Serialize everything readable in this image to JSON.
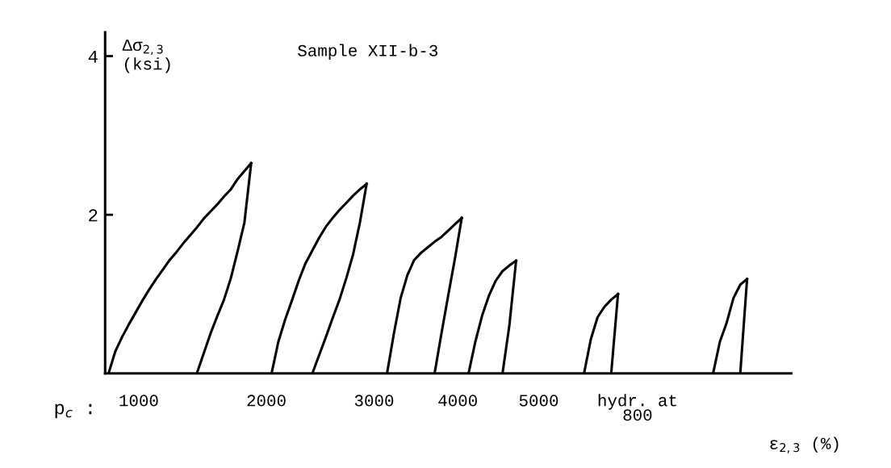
{
  "chart_data": {
    "type": "line",
    "title": "Sample XII-b-3",
    "ylabel": "Δσ$_{2,3}$\n(ksi)",
    "xlabel": "ε$_{2,3}$ (%)",
    "annotations": [
      "p$_{c}$ :",
      "1000",
      "2000",
      "3000",
      "4000",
      "5000",
      "hydr. at\n800"
    ],
    "ylim": [
      0,
      4.3
    ],
    "yticks": [
      2,
      4
    ],
    "tick_labels": "y",
    "grid": false,
    "legend": false,
    "marker": "none",
    "line_style": "solid",
    "categories": [
      null,
      null,
      null,
      null,
      null,
      null,
      null,
      null,
      null,
      null,
      null,
      null,
      null,
      null,
      null,
      null,
      null,
      null,
      null,
      null,
      null,
      null,
      null,
      null,
      null,
      null,
      null,
      null,
      null,
      null,
      null,
      null,
      null,
      null,
      null,
      null,
      null,
      null,
      null,
      null,
      null,
      null,
      null,
      null,
      null,
      null,
      null,
      null,
      null,
      null,
      null,
      null,
      null,
      null,
      null,
      null,
      null,
      null,
      null,
      null,
      null,
      null,
      null,
      null,
      null,
      null,
      null,
      null,
      null,
      null,
      null,
      null,
      null,
      null,
      null,
      null,
      null,
      null,
      null,
      null,
      null,
      null,
      null,
      null,
      null,
      null,
      null,
      null,
      null,
      null,
      null,
      null,
      null,
      null,
      null,
      null,
      null,
      null,
      null,
      null,
      null
    ],
    "series": [
      {
        "color": "#000000",
        "values": [
          0,
          0.28,
          0.46,
          0.62,
          0.77,
          0.92,
          1.06,
          1.19,
          1.31,
          1.43,
          1.53,
          1.64,
          1.74,
          1.84,
          1.95,
          2.04,
          2.13,
          2.23,
          2.32,
          2.45,
          2.55,
          2.65,
          null,
          null,
          null,
          null,
          null,
          null,
          null,
          null,
          null,
          null,
          null,
          null,
          null,
          null,
          null,
          null,
          null,
          null,
          null,
          null,
          null,
          null,
          null,
          null,
          null,
          null,
          null,
          null,
          null,
          null,
          null,
          null,
          null,
          null,
          null,
          null,
          null,
          null,
          null,
          null,
          null,
          null,
          null,
          null,
          null,
          null,
          null,
          null,
          null,
          null,
          null,
          null,
          null,
          null,
          null,
          null,
          null,
          null,
          null,
          null,
          null,
          null,
          null,
          null,
          null,
          null,
          null,
          null,
          null,
          null,
          null,
          null,
          null,
          null,
          null,
          null,
          null,
          null,
          null
        ]
      },
      {
        "color": "#000000",
        "values": [
          null,
          null,
          null,
          null,
          null,
          null,
          null,
          null,
          null,
          null,
          null,
          null,
          null,
          0,
          0.25,
          0.5,
          0.72,
          0.93,
          1.2,
          1.54,
          1.9,
          2.65,
          null,
          null,
          null,
          null,
          null,
          null,
          null,
          null,
          null,
          null,
          null,
          null,
          null,
          null,
          null,
          null,
          null,
          null,
          null,
          null,
          null,
          null,
          null,
          null,
          null,
          null,
          null,
          null,
          null,
          null,
          null,
          null,
          null,
          null,
          null,
          null,
          null,
          null,
          null,
          null,
          null,
          null,
          null,
          null,
          null,
          null,
          null,
          null,
          null,
          null,
          null,
          null,
          null,
          null,
          null,
          null,
          null,
          null,
          null,
          null,
          null,
          null,
          null,
          null,
          null,
          null,
          null,
          null,
          null,
          null,
          null,
          null,
          null,
          null,
          null,
          null,
          null,
          null,
          null
        ]
      },
      {
        "color": "#000000",
        "values": [
          null,
          null,
          null,
          null,
          null,
          null,
          null,
          null,
          null,
          null,
          null,
          null,
          null,
          null,
          null,
          null,
          null,
          null,
          null,
          null,
          null,
          null,
          null,
          null,
          0,
          0.4,
          0.68,
          0.92,
          1.17,
          1.39,
          1.55,
          1.71,
          1.85,
          1.96,
          2.06,
          2.15,
          2.24,
          2.32,
          2.39,
          null,
          null,
          null,
          null,
          null,
          null,
          null,
          null,
          null,
          null,
          null,
          null,
          null,
          null,
          null,
          null,
          null,
          null,
          null,
          null,
          null,
          null,
          null,
          null,
          null,
          null,
          null,
          null,
          null,
          null,
          null,
          null,
          null,
          null,
          null,
          null,
          null,
          null,
          null,
          null,
          null,
          null,
          null,
          null,
          null,
          null,
          null,
          null,
          null,
          null,
          null,
          null,
          null,
          null,
          null,
          null,
          null,
          null,
          null,
          null,
          null,
          null
        ]
      },
      {
        "color": "#000000",
        "values": [
          null,
          null,
          null,
          null,
          null,
          null,
          null,
          null,
          null,
          null,
          null,
          null,
          null,
          null,
          null,
          null,
          null,
          null,
          null,
          null,
          null,
          null,
          null,
          null,
          null,
          null,
          null,
          null,
          null,
          null,
          0,
          0.23,
          0.46,
          0.7,
          0.93,
          1.2,
          1.5,
          1.9,
          2.39,
          null,
          null,
          null,
          null,
          null,
          null,
          null,
          null,
          null,
          null,
          null,
          null,
          null,
          null,
          null,
          null,
          null,
          null,
          null,
          null,
          null,
          null,
          null,
          null,
          null,
          null,
          null,
          null,
          null,
          null,
          null,
          null,
          null,
          null,
          null,
          null,
          null,
          null,
          null,
          null,
          null,
          null,
          null,
          null,
          null,
          null,
          null,
          null,
          null,
          null,
          null,
          null,
          null,
          null,
          null,
          null,
          null,
          null,
          null,
          null,
          null,
          null
        ]
      },
      {
        "color": "#000000",
        "values": [
          null,
          null,
          null,
          null,
          null,
          null,
          null,
          null,
          null,
          null,
          null,
          null,
          null,
          null,
          null,
          null,
          null,
          null,
          null,
          null,
          null,
          null,
          null,
          null,
          null,
          null,
          null,
          null,
          null,
          null,
          null,
          null,
          null,
          null,
          null,
          null,
          null,
          null,
          null,
          null,
          null,
          0,
          0.5,
          0.95,
          1.24,
          1.43,
          1.52,
          1.59,
          1.66,
          1.72,
          1.8,
          1.88,
          1.96,
          null,
          null,
          null,
          null,
          null,
          null,
          null,
          null,
          null,
          null,
          null,
          null,
          null,
          null,
          null,
          null,
          null,
          null,
          null,
          null,
          null,
          null,
          null,
          null,
          null,
          null,
          null,
          null,
          null,
          null,
          null,
          null,
          null,
          null,
          null,
          null,
          null,
          null,
          null,
          null,
          null,
          null,
          null,
          null,
          null,
          null,
          null,
          null
        ]
      },
      {
        "color": "#000000",
        "values": [
          null,
          null,
          null,
          null,
          null,
          null,
          null,
          null,
          null,
          null,
          null,
          null,
          null,
          null,
          null,
          null,
          null,
          null,
          null,
          null,
          null,
          null,
          null,
          null,
          null,
          null,
          null,
          null,
          null,
          null,
          null,
          null,
          null,
          null,
          null,
          null,
          null,
          null,
          null,
          null,
          null,
          null,
          null,
          null,
          null,
          null,
          null,
          null,
          0,
          0.5,
          0.98,
          1.45,
          1.96,
          null,
          null,
          null,
          null,
          null,
          null,
          null,
          null,
          null,
          null,
          null,
          null,
          null,
          null,
          null,
          null,
          null,
          null,
          null,
          null,
          null,
          null,
          null,
          null,
          null,
          null,
          null,
          null,
          null,
          null,
          null,
          null,
          null,
          null,
          null,
          null,
          null,
          null,
          null,
          null,
          null,
          null,
          null,
          null,
          null,
          null,
          null,
          null
        ]
      },
      {
        "color": "#000000",
        "values": [
          null,
          null,
          null,
          null,
          null,
          null,
          null,
          null,
          null,
          null,
          null,
          null,
          null,
          null,
          null,
          null,
          null,
          null,
          null,
          null,
          null,
          null,
          null,
          null,
          null,
          null,
          null,
          null,
          null,
          null,
          null,
          null,
          null,
          null,
          null,
          null,
          null,
          null,
          null,
          null,
          null,
          null,
          null,
          null,
          null,
          null,
          null,
          null,
          null,
          null,
          null,
          null,
          null,
          0,
          0.4,
          0.73,
          0.98,
          1.17,
          1.29,
          1.36,
          1.42,
          null,
          null,
          null,
          null,
          null,
          null,
          null,
          null,
          null,
          null,
          null,
          null,
          null,
          null,
          null,
          null,
          null,
          null,
          null,
          null,
          null,
          null,
          null,
          null,
          null,
          null,
          null,
          null,
          null,
          null,
          null,
          null,
          null,
          null,
          null,
          null,
          null,
          null,
          null,
          null
        ]
      },
      {
        "color": "#000000",
        "values": [
          null,
          null,
          null,
          null,
          null,
          null,
          null,
          null,
          null,
          null,
          null,
          null,
          null,
          null,
          null,
          null,
          null,
          null,
          null,
          null,
          null,
          null,
          null,
          null,
          null,
          null,
          null,
          null,
          null,
          null,
          null,
          null,
          null,
          null,
          null,
          null,
          null,
          null,
          null,
          null,
          null,
          null,
          null,
          null,
          null,
          null,
          null,
          null,
          null,
          null,
          null,
          null,
          null,
          null,
          null,
          null,
          null,
          null,
          0,
          0.6,
          1.42,
          null,
          null,
          null,
          null,
          null,
          null,
          null,
          null,
          null,
          null,
          null,
          null,
          null,
          null,
          null,
          null,
          null,
          null,
          null,
          null,
          null,
          null,
          null,
          null,
          null,
          null,
          null,
          null,
          null,
          null,
          null,
          null,
          null,
          null,
          null,
          null,
          null,
          null,
          null,
          null
        ]
      },
      {
        "color": "#000000",
        "values": [
          null,
          null,
          null,
          null,
          null,
          null,
          null,
          null,
          null,
          null,
          null,
          null,
          null,
          null,
          null,
          null,
          null,
          null,
          null,
          null,
          null,
          null,
          null,
          null,
          null,
          null,
          null,
          null,
          null,
          null,
          null,
          null,
          null,
          null,
          null,
          null,
          null,
          null,
          null,
          null,
          null,
          null,
          null,
          null,
          null,
          null,
          null,
          null,
          null,
          null,
          null,
          null,
          null,
          null,
          null,
          null,
          null,
          null,
          null,
          null,
          null,
          null,
          null,
          null,
          null,
          null,
          null,
          null,
          null,
          null,
          0,
          0.43,
          0.71,
          0.84,
          0.93,
          1.0,
          null,
          null,
          null,
          null,
          null,
          null,
          null,
          null,
          null,
          null,
          null,
          null,
          null,
          null,
          null,
          null,
          null,
          null,
          null,
          null,
          null,
          null,
          null,
          null,
          null
        ]
      },
      {
        "color": "#000000",
        "values": [
          null,
          null,
          null,
          null,
          null,
          null,
          null,
          null,
          null,
          null,
          null,
          null,
          null,
          null,
          null,
          null,
          null,
          null,
          null,
          null,
          null,
          null,
          null,
          null,
          null,
          null,
          null,
          null,
          null,
          null,
          null,
          null,
          null,
          null,
          null,
          null,
          null,
          null,
          null,
          null,
          null,
          null,
          null,
          null,
          null,
          null,
          null,
          null,
          null,
          null,
          null,
          null,
          null,
          null,
          null,
          null,
          null,
          null,
          null,
          null,
          null,
          null,
          null,
          null,
          null,
          null,
          null,
          null,
          null,
          null,
          null,
          null,
          null,
          null,
          0,
          1.0,
          null,
          null,
          null,
          null,
          null,
          null,
          null,
          null,
          null,
          null,
          null,
          null,
          null,
          null,
          null,
          null,
          null,
          null,
          null,
          null,
          null,
          null,
          null,
          null,
          null
        ]
      },
      {
        "color": "#000000",
        "values": [
          null,
          null,
          null,
          null,
          null,
          null,
          null,
          null,
          null,
          null,
          null,
          null,
          null,
          null,
          null,
          null,
          null,
          null,
          null,
          null,
          null,
          null,
          null,
          null,
          null,
          null,
          null,
          null,
          null,
          null,
          null,
          null,
          null,
          null,
          null,
          null,
          null,
          null,
          null,
          null,
          null,
          null,
          null,
          null,
          null,
          null,
          null,
          null,
          null,
          null,
          null,
          null,
          null,
          null,
          null,
          null,
          null,
          null,
          null,
          null,
          null,
          null,
          null,
          null,
          null,
          null,
          null,
          null,
          null,
          null,
          null,
          null,
          null,
          null,
          null,
          null,
          null,
          null,
          null,
          null,
          null,
          null,
          null,
          null,
          null,
          null,
          null,
          null,
          null,
          0,
          0.4,
          0.64,
          0.95,
          1.12,
          1.19,
          null,
          null,
          null,
          null,
          null,
          null
        ]
      },
      {
        "color": "#000000",
        "values": [
          null,
          null,
          null,
          null,
          null,
          null,
          null,
          null,
          null,
          null,
          null,
          null,
          null,
          null,
          null,
          null,
          null,
          null,
          null,
          null,
          null,
          null,
          null,
          null,
          null,
          null,
          null,
          null,
          null,
          null,
          null,
          null,
          null,
          null,
          null,
          null,
          null,
          null,
          null,
          null,
          null,
          null,
          null,
          null,
          null,
          null,
          null,
          null,
          null,
          null,
          null,
          null,
          null,
          null,
          null,
          null,
          null,
          null,
          null,
          null,
          null,
          null,
          null,
          null,
          null,
          null,
          null,
          null,
          null,
          null,
          null,
          null,
          null,
          null,
          null,
          null,
          null,
          null,
          null,
          null,
          null,
          null,
          null,
          null,
          null,
          null,
          null,
          null,
          null,
          null,
          null,
          null,
          null,
          0,
          1.19,
          null,
          null,
          null,
          null,
          null,
          null
        ]
      }
    ]
  }
}
